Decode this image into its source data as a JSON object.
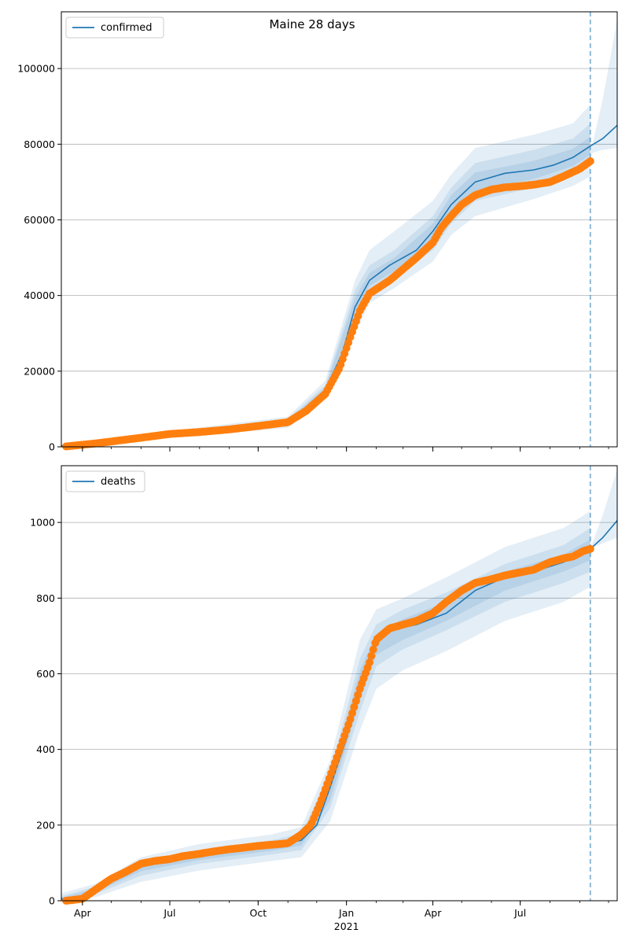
{
  "figure": {
    "title": "Maine 28 days"
  },
  "colors": {
    "model_line": "#1f77b4",
    "observed": "#ff7f0e",
    "band": "#1f77b4",
    "grid": "#b0b0b0",
    "forecast_marker": "#1f77b4"
  },
  "x_axis": {
    "type": "date",
    "range": [
      "2020-03-10",
      "2021-10-10"
    ],
    "major_ticks": [
      {
        "date": "2020-04-01",
        "label": "Apr"
      },
      {
        "date": "2020-07-01",
        "label": "Jul"
      },
      {
        "date": "2020-10-01",
        "label": "Oct"
      },
      {
        "date": "2021-01-01",
        "label": "Jan"
      },
      {
        "date": "2021-04-01",
        "label": "Apr"
      },
      {
        "date": "2021-07-01",
        "label": "Jul"
      }
    ],
    "year_label": "2021",
    "forecast_start": "2021-09-12"
  },
  "chart_data": [
    {
      "type": "line",
      "name": "confirmed",
      "legend": "confirmed",
      "legend_position": "top-left",
      "ylim": [
        0,
        115000
      ],
      "yticks": [
        0,
        20000,
        40000,
        60000,
        80000,
        100000
      ],
      "grid": true,
      "model": {
        "x": [
          "2020-03-10",
          "2020-05-01",
          "2020-07-01",
          "2020-09-01",
          "2020-11-01",
          "2020-11-20",
          "2020-12-10",
          "2020-12-28",
          "2021-01-10",
          "2021-01-25",
          "2021-02-15",
          "2021-03-15",
          "2021-04-01",
          "2021-04-20",
          "2021-05-15",
          "2021-06-15",
          "2021-07-15",
          "2021-08-05",
          "2021-08-25",
          "2021-09-12",
          "2021-09-25",
          "2021-10-10"
        ],
        "y": [
          300,
          1500,
          3500,
          4800,
          6500,
          9000,
          15000,
          25000,
          37000,
          44000,
          48000,
          52000,
          57000,
          64000,
          70000,
          72300,
          73200,
          74500,
          76500,
          79500,
          81500,
          85000
        ]
      },
      "bands": [
        {
          "name": "outer",
          "x": [
            "2020-03-10",
            "2020-11-01",
            "2020-12-10",
            "2021-01-10",
            "2021-01-25",
            "2021-02-20",
            "2021-04-01",
            "2021-04-20",
            "2021-05-15",
            "2021-07-15",
            "2021-08-25",
            "2021-09-12"
          ],
          "lower": [
            0,
            5000,
            13000,
            30000,
            38000,
            42000,
            49000,
            56000,
            61000,
            65500,
            69000,
            71500
          ],
          "upper": [
            600,
            8000,
            17500,
            44000,
            52000,
            57000,
            65000,
            72000,
            79000,
            82500,
            85500,
            90500
          ]
        },
        {
          "name": "middle",
          "x": [
            "2020-03-10",
            "2020-11-01",
            "2020-12-10",
            "2021-01-10",
            "2021-01-25",
            "2021-02-20",
            "2021-04-01",
            "2021-04-20",
            "2021-05-15",
            "2021-07-15",
            "2021-08-25",
            "2021-09-12"
          ],
          "lower": [
            100,
            5600,
            13800,
            32500,
            40500,
            44600,
            52000,
            59000,
            65000,
            68500,
            72000,
            75000
          ],
          "upper": [
            500,
            7400,
            16300,
            41500,
            48000,
            52000,
            61000,
            68500,
            75000,
            78500,
            81500,
            85500
          ]
        },
        {
          "name": "inner",
          "x": [
            "2020-03-10",
            "2020-11-01",
            "2020-12-10",
            "2021-01-10",
            "2021-01-25",
            "2021-02-20",
            "2021-04-01",
            "2021-04-20",
            "2021-05-15",
            "2021-07-15",
            "2021-08-25",
            "2021-09-12"
          ],
          "lower": [
            200,
            6100,
            14400,
            34500,
            42500,
            46500,
            54500,
            61500,
            67500,
            70800,
            74200,
            77200
          ],
          "upper": [
            400,
            6900,
            15600,
            39500,
            46000,
            50000,
            59000,
            66500,
            72500,
            75600,
            78800,
            82000
          ]
        },
        {
          "name": "forecast",
          "x": [
            "2021-09-12",
            "2021-09-25",
            "2021-10-10"
          ],
          "lower": [
            77500,
            78500,
            79000
          ],
          "upper": [
            77500,
            92000,
            113000
          ]
        }
      ],
      "observed": {
        "name": "observed confirmed",
        "x": [
          "2020-03-15",
          "2020-04-15",
          "2020-06-01",
          "2020-07-01",
          "2020-08-01",
          "2020-09-01",
          "2020-10-01",
          "2020-11-01",
          "2020-11-20",
          "2020-12-10",
          "2020-12-25",
          "2021-01-05",
          "2021-01-15",
          "2021-01-25",
          "2021-02-15",
          "2021-03-01",
          "2021-03-15",
          "2021-04-01",
          "2021-04-10",
          "2021-04-20",
          "2021-05-01",
          "2021-05-15",
          "2021-06-01",
          "2021-06-15",
          "2021-07-01",
          "2021-07-15",
          "2021-08-01",
          "2021-08-15",
          "2021-09-01",
          "2021-09-12"
        ],
        "y": [
          100,
          900,
          2400,
          3400,
          3900,
          4600,
          5500,
          6500,
          9500,
          14000,
          21000,
          29000,
          36000,
          40500,
          44000,
          47000,
          50000,
          54000,
          58000,
          61000,
          64000,
          66500,
          68000,
          68600,
          68900,
          69300,
          70000,
          71500,
          73500,
          75500
        ]
      }
    },
    {
      "type": "line",
      "name": "deaths",
      "legend": "deaths",
      "legend_position": "top-left",
      "ylim": [
        0,
        1150
      ],
      "yticks": [
        0,
        200,
        400,
        600,
        800,
        1000
      ],
      "grid": true,
      "model": {
        "x": [
          "2020-03-10",
          "2020-03-25",
          "2020-04-15",
          "2020-05-15",
          "2020-06-15",
          "2020-07-15",
          "2020-08-15",
          "2020-09-15",
          "2020-10-15",
          "2020-11-15",
          "2020-12-01",
          "2020-12-15",
          "2021-01-01",
          "2021-01-15",
          "2021-02-01",
          "2021-02-15",
          "2021-03-15",
          "2021-04-15",
          "2021-05-15",
          "2021-06-15",
          "2021-07-15",
          "2021-08-15",
          "2021-09-12",
          "2021-09-25",
          "2021-10-10"
        ],
        "y": [
          5,
          5,
          30,
          75,
          100,
          115,
          125,
          135,
          145,
          160,
          200,
          300,
          430,
          580,
          690,
          715,
          730,
          760,
          820,
          855,
          870,
          895,
          930,
          960,
          1005
        ]
      },
      "bands": [
        {
          "name": "outer",
          "x": [
            "2020-03-10",
            "2020-04-15",
            "2020-06-01",
            "2020-08-01",
            "2020-10-15",
            "2020-11-15",
            "2020-12-15",
            "2021-01-15",
            "2021-02-01",
            "2021-03-01",
            "2021-04-15",
            "2021-06-15",
            "2021-08-15",
            "2021-09-12"
          ],
          "lower": [
            0,
            10,
            50,
            80,
            105,
            115,
            210,
            450,
            560,
            610,
            660,
            740,
            790,
            830
          ],
          "upper": [
            20,
            45,
            115,
            150,
            175,
            195,
            370,
            690,
            770,
            800,
            855,
            935,
            985,
            1030
          ]
        },
        {
          "name": "middle",
          "x": [
            "2020-03-10",
            "2020-04-15",
            "2020-06-01",
            "2020-08-01",
            "2020-10-15",
            "2020-11-15",
            "2020-12-15",
            "2021-01-15",
            "2021-02-01",
            "2021-03-01",
            "2021-04-15",
            "2021-06-15",
            "2021-08-15",
            "2021-09-12"
          ],
          "lower": [
            2,
            18,
            66,
            98,
            122,
            134,
            245,
            500,
            620,
            665,
            715,
            790,
            840,
            870
          ],
          "upper": [
            12,
            38,
            102,
            135,
            160,
            178,
            340,
            640,
            730,
            770,
            815,
            890,
            940,
            985
          ]
        },
        {
          "name": "inner",
          "x": [
            "2020-03-10",
            "2020-04-15",
            "2020-06-01",
            "2020-08-01",
            "2020-10-15",
            "2020-11-15",
            "2020-12-15",
            "2021-01-15",
            "2021-02-01",
            "2021-03-01",
            "2021-04-15",
            "2021-06-15",
            "2021-08-15",
            "2021-09-12"
          ],
          "lower": [
            4,
            24,
            78,
            108,
            132,
            146,
            265,
            530,
            650,
            690,
            740,
            820,
            870,
            900
          ],
          "upper": [
            8,
            32,
            92,
            124,
            150,
            166,
            320,
            610,
            705,
            745,
            790,
            870,
            915,
            955
          ]
        },
        {
          "name": "forecast",
          "x": [
            "2021-09-12",
            "2021-09-25",
            "2021-10-10"
          ],
          "lower": [
            930,
            945,
            960
          ],
          "upper": [
            930,
            1020,
            1140
          ]
        }
      ],
      "observed": {
        "name": "observed deaths",
        "x": [
          "2020-03-15",
          "2020-04-01",
          "2020-04-15",
          "2020-05-01",
          "2020-05-15",
          "2020-06-01",
          "2020-06-15",
          "2020-07-01",
          "2020-07-15",
          "2020-08-01",
          "2020-08-15",
          "2020-09-01",
          "2020-09-15",
          "2020-10-01",
          "2020-10-15",
          "2020-11-01",
          "2020-11-15",
          "2020-11-25",
          "2020-12-05",
          "2020-12-15",
          "2020-12-25",
          "2021-01-05",
          "2021-01-15",
          "2021-01-25",
          "2021-02-01",
          "2021-02-15",
          "2021-03-01",
          "2021-03-15",
          "2021-04-01",
          "2021-04-15",
          "2021-05-01",
          "2021-05-15",
          "2021-06-01",
          "2021-06-15",
          "2021-07-01",
          "2021-07-15",
          "2021-08-01",
          "2021-08-15",
          "2021-08-25",
          "2021-09-05",
          "2021-09-12"
        ],
        "y": [
          0,
          5,
          30,
          58,
          75,
          98,
          105,
          110,
          118,
          124,
          130,
          136,
          140,
          145,
          148,
          152,
          175,
          200,
          260,
          330,
          400,
          480,
          560,
          630,
          690,
          720,
          730,
          740,
          760,
          790,
          820,
          840,
          850,
          860,
          868,
          875,
          895,
          905,
          910,
          925,
          930
        ]
      }
    }
  ]
}
